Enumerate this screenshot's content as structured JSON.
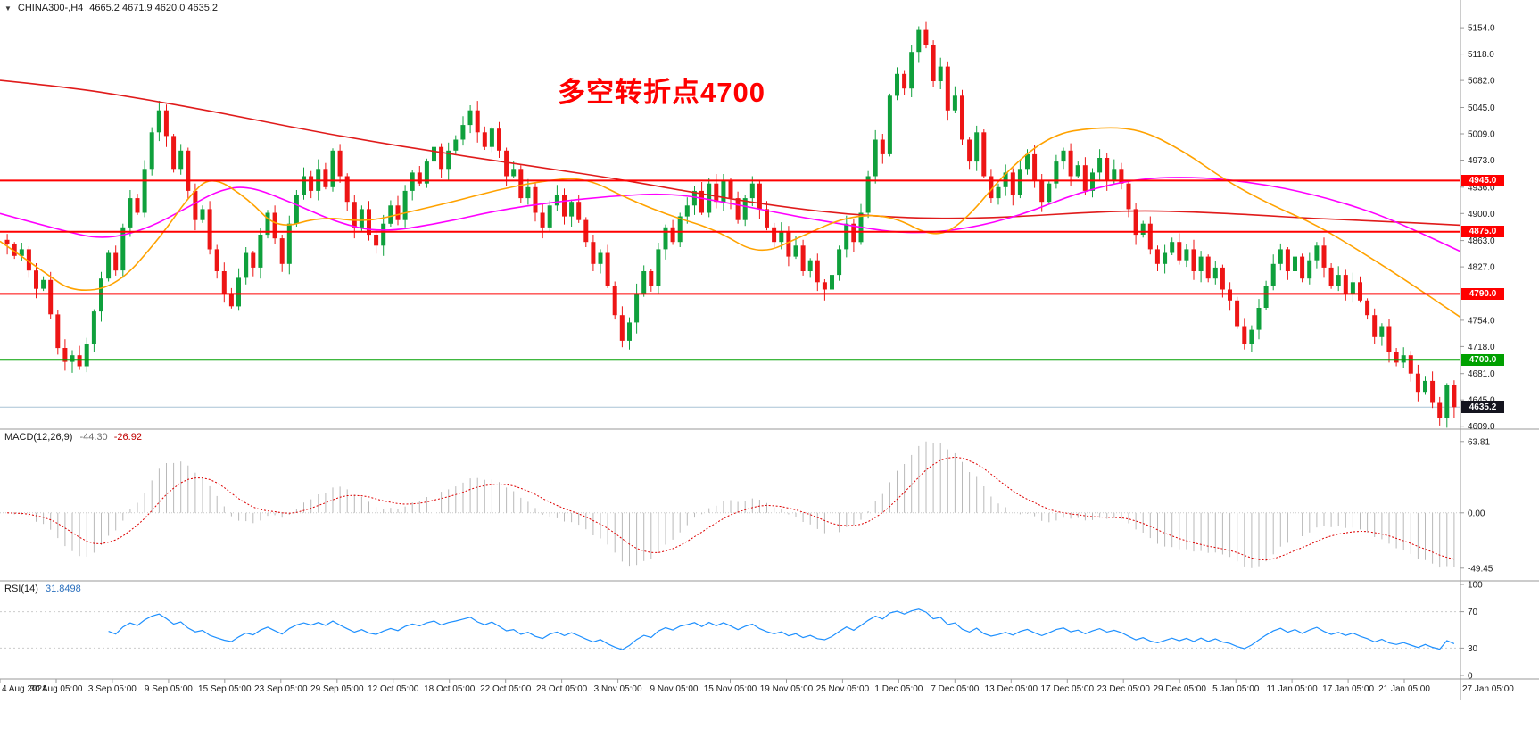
{
  "header": {
    "title": "CHINA300-,H4",
    "ohlc": "4665.2 4671.9 4620.0 4635.2",
    "collapse_icon": "▼"
  },
  "annotation": {
    "text": "多空转折点4700",
    "color": "#ff0000"
  },
  "indicators": {
    "macd": {
      "label": "MACD(12,26,9)",
      "value_main": "-44.30",
      "value_signal": "-26.92",
      "y_ticks": [
        "63.81",
        "0.00",
        "-49.45"
      ]
    },
    "rsi": {
      "label": "RSI(14)",
      "value": "31.8498",
      "y_ticks": [
        "100",
        "70",
        "30",
        "0"
      ],
      "levels": [
        70,
        30
      ]
    }
  },
  "colors": {
    "background": "#ffffff",
    "candle_up": "#0fa03c",
    "candle_down": "#ed1515",
    "axis_text": "#1b1b1b",
    "separator": "#9a9a9a",
    "macd_bars": "#b9b9b9",
    "macd_signal": "#dd0000",
    "rsi_line": "#1e90ff",
    "rsi_level_line": "#cccccc"
  },
  "chart_data": {
    "type": "candlestick",
    "symbol": "CHINA300-",
    "timeframe": "H4",
    "grid": false,
    "price_range": {
      "top": 5192,
      "bottom": 4605
    },
    "y_ticks_main": [
      "5154.0",
      "5118.0",
      "5082.0",
      "5045.0",
      "5009.0",
      "4973.0",
      "4936.0",
      "4900.0",
      "4863.0",
      "4827.0",
      "4790.0",
      "4754.0",
      "4718.0",
      "4681.0",
      "4645.0",
      "4609.0"
    ],
    "x_labels": [
      "4 Aug 2021",
      "30 Aug 05:00",
      "3 Sep 05:00",
      "9 Sep 05:00",
      "15 Sep 05:00",
      "23 Sep 05:00",
      "29 Sep 05:00",
      "12 Oct 05:00",
      "18 Oct 05:00",
      "22 Oct 05:00",
      "28 Oct 05:00",
      "3 Nov 05:00",
      "9 Nov 05:00",
      "15 Nov 05:00",
      "19 Nov 05:00",
      "25 Nov 05:00",
      "1 Dec 05:00",
      "7 Dec 05:00",
      "13 Dec 05:00",
      "17 Dec 05:00",
      "23 Dec 05:00",
      "29 Dec 05:00",
      "5 Jan 05:00",
      "11 Jan 05:00",
      "17 Jan 05:00",
      "21 Jan 05:00",
      "27 Jan 05:00"
    ],
    "levels": [
      {
        "label": "4945.0",
        "price": 4945.0,
        "line_color": "#ff0000",
        "tag_bg": "#ff0000",
        "line_width": 2
      },
      {
        "label": "4875.0",
        "price": 4875.0,
        "line_color": "#ff0000",
        "tag_bg": "#ff0000",
        "line_width": 2
      },
      {
        "label": "4790.0",
        "price": 4790.0,
        "line_color": "#ff0000",
        "tag_bg": "#ff0000",
        "line_width": 2
      },
      {
        "label": "4700.0",
        "price": 4700.0,
        "line_color": "#00a000",
        "tag_bg": "#00a000",
        "line_width": 2
      },
      {
        "label": "4635.2",
        "price": 4635.2,
        "line_color": "#a9c4d6",
        "tag_bg": "#14141e",
        "line_width": 1,
        "is_current_price": true
      }
    ],
    "moving_averages": [
      {
        "name": "ma-slow",
        "color": "#e01b1b",
        "points": [
          [
            0,
            5082
          ],
          [
            0.05,
            5072
          ],
          [
            0.1,
            5056
          ],
          [
            0.15,
            5038
          ],
          [
            0.2,
            5018
          ],
          [
            0.25,
            5000
          ],
          [
            0.3,
            4984
          ],
          [
            0.34,
            4972
          ],
          [
            0.38,
            4960
          ],
          [
            0.42,
            4948
          ],
          [
            0.46,
            4934
          ],
          [
            0.5,
            4920
          ],
          [
            0.54,
            4908
          ],
          [
            0.58,
            4899
          ],
          [
            0.62,
            4894
          ],
          [
            0.66,
            4893
          ],
          [
            0.7,
            4896
          ],
          [
            0.74,
            4901
          ],
          [
            0.78,
            4904
          ],
          [
            0.82,
            4902
          ],
          [
            0.86,
            4898
          ],
          [
            0.9,
            4893
          ],
          [
            0.94,
            4890
          ],
          [
            1,
            4884
          ]
        ]
      },
      {
        "name": "ma-medium",
        "color": "#ff00ff",
        "points": [
          [
            0,
            4900
          ],
          [
            0.04,
            4878
          ],
          [
            0.07,
            4864
          ],
          [
            0.1,
            4878
          ],
          [
            0.13,
            4910
          ],
          [
            0.15,
            4932
          ],
          [
            0.17,
            4938
          ],
          [
            0.2,
            4915
          ],
          [
            0.23,
            4888
          ],
          [
            0.26,
            4874
          ],
          [
            0.3,
            4886
          ],
          [
            0.34,
            4904
          ],
          [
            0.38,
            4916
          ],
          [
            0.42,
            4924
          ],
          [
            0.46,
            4928
          ],
          [
            0.5,
            4914
          ],
          [
            0.54,
            4898
          ],
          [
            0.58,
            4884
          ],
          [
            0.62,
            4872
          ],
          [
            0.66,
            4878
          ],
          [
            0.7,
            4898
          ],
          [
            0.74,
            4930
          ],
          [
            0.78,
            4948
          ],
          [
            0.82,
            4950
          ],
          [
            0.86,
            4942
          ],
          [
            0.9,
            4926
          ],
          [
            0.94,
            4902
          ],
          [
            0.97,
            4876
          ],
          [
            1,
            4848
          ]
        ]
      },
      {
        "name": "ma-fast",
        "color": "#ffa200",
        "points": [
          [
            0,
            4862
          ],
          [
            0.03,
            4820
          ],
          [
            0.05,
            4792
          ],
          [
            0.08,
            4800
          ],
          [
            0.11,
            4868
          ],
          [
            0.13,
            4925
          ],
          [
            0.145,
            4952
          ],
          [
            0.17,
            4920
          ],
          [
            0.19,
            4878
          ],
          [
            0.22,
            4896
          ],
          [
            0.25,
            4888
          ],
          [
            0.28,
            4902
          ],
          [
            0.31,
            4916
          ],
          [
            0.34,
            4932
          ],
          [
            0.37,
            4944
          ],
          [
            0.4,
            4950
          ],
          [
            0.43,
            4920
          ],
          [
            0.46,
            4896
          ],
          [
            0.49,
            4878
          ],
          [
            0.52,
            4842
          ],
          [
            0.55,
            4870
          ],
          [
            0.58,
            4896
          ],
          [
            0.61,
            4898
          ],
          [
            0.64,
            4866
          ],
          [
            0.66,
            4888
          ],
          [
            0.69,
            4960
          ],
          [
            0.72,
            5008
          ],
          [
            0.75,
            5018
          ],
          [
            0.78,
            5016
          ],
          [
            0.81,
            4986
          ],
          [
            0.84,
            4944
          ],
          [
            0.87,
            4912
          ],
          [
            0.9,
            4886
          ],
          [
            0.93,
            4850
          ],
          [
            0.96,
            4812
          ],
          [
            1,
            4758
          ]
        ]
      }
    ],
    "closes": [
      4858,
      4842,
      4851,
      4822,
      4797,
      4809,
      4762,
      4716,
      4697,
      4706,
      4691,
      4722,
      4766,
      4811,
      4846,
      4822,
      4881,
      4921,
      4901,
      4961,
      5011,
      5041,
      5006,
      4961,
      4986,
      4931,
      4891,
      4906,
      4851,
      4821,
      4791,
      4773,
      4812,
      4846,
      4826,
      4871,
      4901,
      4866,
      4831,
      4886,
      4926,
      4951,
      4931,
      4961,
      4936,
      4986,
      4951,
      4916,
      4881,
      4906,
      4871,
      4856,
      4886,
      4911,
      4891,
      4931,
      4956,
      4941,
      4971,
      4991,
      4961,
      4986,
      5001,
      5021,
      5041,
      5011,
      4991,
      5016,
      4986,
      4951,
      4961,
      4921,
      4936,
      4901,
      4881,
      4911,
      4926,
      4896,
      4916,
      4891,
      4861,
      4831,
      4846,
      4801,
      4761,
      4726,
      4751,
      4791,
      4821,
      4801,
      4851,
      4881,
      4861,
      4896,
      4911,
      4931,
      4901,
      4941,
      4916,
      4946,
      4921,
      4891,
      4921,
      4941,
      4906,
      4881,
      4861,
      4876,
      4841,
      4856,
      4821,
      4836,
      4806,
      4796,
      4816,
      4851,
      4886,
      4861,
      4901,
      4951,
      5001,
      4981,
      5061,
      5091,
      5071,
      5121,
      5151,
      5131,
      5081,
      5101,
      5041,
      5061,
      5001,
      4971,
      5011,
      4951,
      4921,
      4936,
      4956,
      4926,
      4961,
      4981,
      4946,
      4916,
      4941,
      4971,
      4986,
      4951,
      4966,
      4931,
      4956,
      4976,
      4946,
      4961,
      4941,
      4906,
      4871,
      4886,
      4851,
      4831,
      4846,
      4861,
      4836,
      4851,
      4821,
      4841,
      4811,
      4826,
      4796,
      4781,
      4746,
      4721,
      4741,
      4771,
      4801,
      4831,
      4851,
      4821,
      4841,
      4811,
      4836,
      4856,
      4826,
      4801,
      4816,
      4791,
      4806,
      4781,
      4761,
      4731,
      4746,
      4711,
      4696,
      4706,
      4681,
      4656,
      4671,
      4641,
      4620,
      4665,
      4635.2
    ],
    "last_candle": {
      "open": 4665.2,
      "high": 4671.9,
      "low": 4620.0,
      "close": 4635.2
    }
  }
}
